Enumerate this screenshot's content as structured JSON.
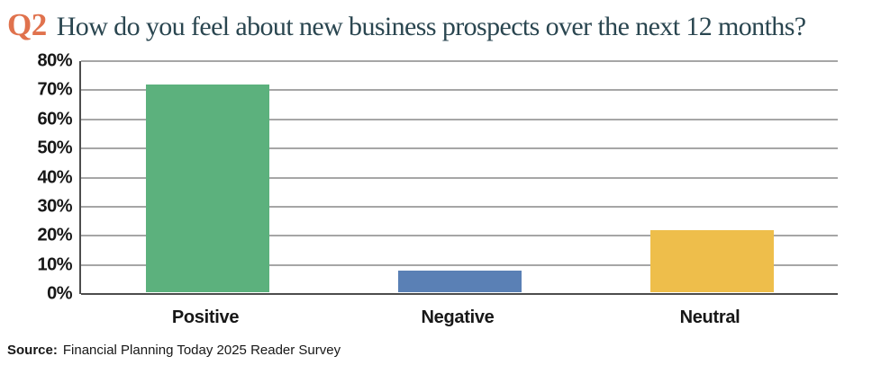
{
  "title": {
    "tag": "Q2",
    "text": "How do you feel about new business prospects over the next 12 months?"
  },
  "chart_data": {
    "type": "bar",
    "title": "Q2 How do you feel about new business prospects over the next 12 months?",
    "categories": [
      "Positive",
      "Negative",
      "Neutral"
    ],
    "values": [
      72,
      8,
      22
    ],
    "xlabel": "",
    "ylabel": "",
    "ylim": [
      0,
      80
    ],
    "ytick_step": 10,
    "ytick_suffix": "%",
    "grid": true,
    "legend": false,
    "bar_colors": [
      "#5cb17d",
      "#5a80b5",
      "#eebe4b"
    ]
  },
  "source": {
    "label": "Source:",
    "text": "Financial Planning Today 2025 Reader Survey"
  },
  "colors": {
    "accent_orange": "#e0724d",
    "title_slate": "#2a4650",
    "gridline": "#a6a6a6",
    "axis": "#4d4d4d",
    "bar_positive": "#5cb17d",
    "bar_negative": "#5a80b5",
    "bar_neutral": "#eebe4b"
  }
}
